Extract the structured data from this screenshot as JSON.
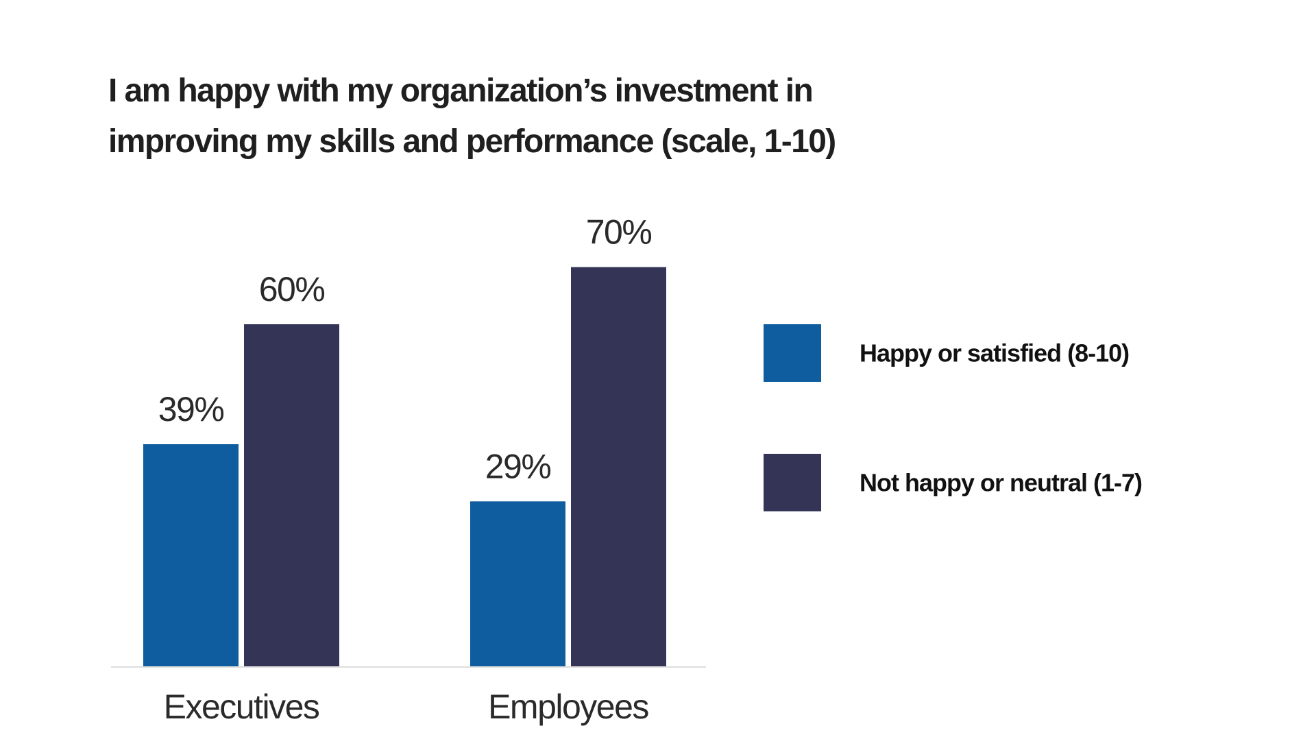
{
  "chart_data": {
    "type": "bar",
    "title": "I am happy with my organization’s investment in improving my skills and performance (scale, 1-10)",
    "title_lines": [
      "I am happy with my organization’s investment in",
      "improving my skills and performance (scale, 1-10)"
    ],
    "categories": [
      "Executives",
      "Employees"
    ],
    "series": [
      {
        "name": "Happy or satisfied (8-10)",
        "values": [
          39,
          29
        ],
        "labels": [
          "39%",
          "29%"
        ],
        "color": "#0f5c9e"
      },
      {
        "name": "Not happy or neutral (1-7)",
        "values": [
          60,
          70
        ],
        "labels": [
          "60%",
          "70%"
        ],
        "color": "#333456"
      }
    ],
    "value_suffix": "%",
    "ylim": [
      0,
      100
    ],
    "grid": false,
    "legend_position": "right",
    "axis_line_color": "#dddddd"
  }
}
